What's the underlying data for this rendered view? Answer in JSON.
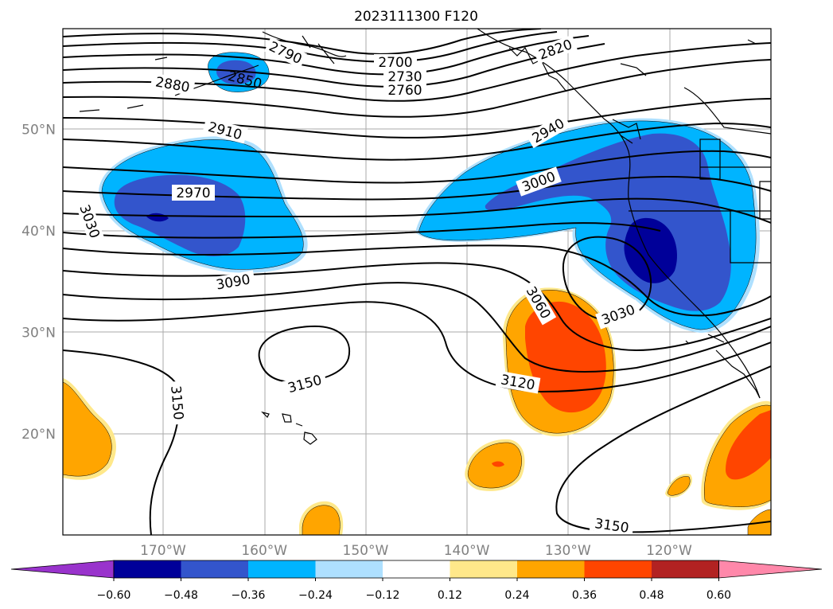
{
  "title": "2023111300 F120",
  "lat_labels": [
    {
      "text": "50°N",
      "lat": 50
    },
    {
      "text": "40°N",
      "lat": 40
    },
    {
      "text": "30°N",
      "lat": 30
    },
    {
      "text": "20°N",
      "lat": 20
    }
  ],
  "lon_labels": [
    {
      "text": "170°W",
      "lon": -170
    },
    {
      "text": "160°W",
      "lon": -160
    },
    {
      "text": "150°W",
      "lon": -150
    },
    {
      "text": "140°W",
      "lon": -140
    },
    {
      "text": "130°W",
      "lon": -130
    },
    {
      "text": "120°W",
      "lon": -120
    }
  ],
  "contour_labels": [
    "2700",
    "2730",
    "2760",
    "2790",
    "2820",
    "2850",
    "2880",
    "2910",
    "2940",
    "2970",
    "3000",
    "3030",
    "3030",
    "3060",
    "3090",
    "3120",
    "3150",
    "3150",
    "3150"
  ],
  "colorbar": {
    "colors": [
      "#9933cc",
      "#000099",
      "#3355cc",
      "#00b4ff",
      "#aee0ff",
      "#ffffff",
      "#ffe88a",
      "#ffa500",
      "#ff4500",
      "#b22222",
      "#ff88aa"
    ],
    "tick_labels": [
      "−0.60",
      "−0.48",
      "−0.36",
      "−0.24",
      "−0.12",
      "0.12",
      "0.24",
      "0.36",
      "0.48",
      "0.60"
    ]
  }
}
